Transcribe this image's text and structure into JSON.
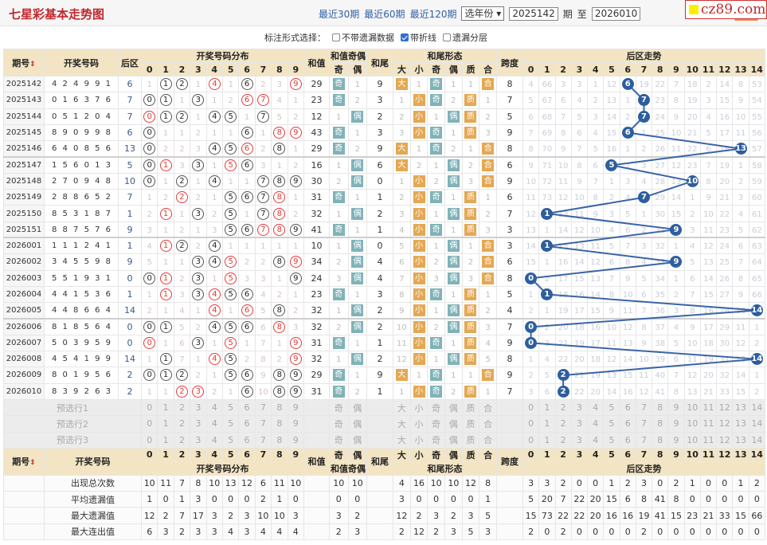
{
  "header": {
    "title": "七星彩基本走势图",
    "links": [
      "最近30期",
      "最近60期",
      "最近120期"
    ],
    "year_select": "选年份",
    "from_issue": "2025142",
    "issue_unit": "期",
    "to_label": "至",
    "to_issue": "2026010",
    "watermark": "cz89.com"
  },
  "options": {
    "label": "标注形式选择：",
    "items": [
      {
        "label": "不带遗漏数据",
        "checked": false
      },
      {
        "label": "带折线",
        "checked": true
      },
      {
        "label": "遗漏分层",
        "checked": false
      }
    ]
  },
  "columns": {
    "issue": "期号",
    "sort": "⇕",
    "nums": "开奖号码",
    "back": "后区",
    "dist": "开奖号码分布",
    "digits": [
      "0",
      "1",
      "2",
      "3",
      "4",
      "5",
      "6",
      "7",
      "8",
      "9"
    ],
    "sum": "和值",
    "sum_parity": "和值奇偶",
    "parity": [
      "奇",
      "偶"
    ],
    "tail": "和尾",
    "tail_form": "和尾形态",
    "forms": [
      "大",
      "小",
      "奇",
      "偶",
      "质",
      "合"
    ],
    "span": "跨度",
    "back_trend": "后区走势",
    "back_digits": [
      "0",
      "1",
      "2",
      "3",
      "4",
      "5",
      "6",
      "7",
      "8",
      "9",
      "10",
      "11",
      "12",
      "13",
      "14"
    ]
  },
  "colors": {
    "hit_back": "#2d5e9e",
    "line": "#3a64a8",
    "teal": "#80b3b8",
    "orange": "#e4a853"
  },
  "rows": [
    {
      "issue": "2025142",
      "nums": [
        4,
        2,
        4,
        9,
        9,
        1
      ],
      "back": 6,
      "miss": [
        1,
        null,
        null,
        1,
        null,
        1,
        null,
        2,
        3,
        null
      ],
      "sum": 29,
      "sp": "奇",
      "spm": 1,
      "tail": 9,
      "bs": "大",
      "bsm": 1,
      "oe": "奇",
      "oem": 1,
      "pc": "合",
      "pcm": 1,
      "span": 8,
      "bmiss": [
        4,
        66,
        3,
        3,
        1,
        12,
        null,
        19,
        22,
        7,
        18,
        2,
        14,
        8,
        53
      ]
    },
    {
      "issue": "2025143",
      "nums": [
        0,
        1,
        6,
        3,
        7,
        6
      ],
      "back": 7,
      "miss": [
        null,
        null,
        1,
        null,
        1,
        2,
        null,
        null,
        4,
        1
      ],
      "sum": 23,
      "sp": "奇",
      "spm": 2,
      "tail": 3,
      "bs": "小",
      "bsm": 1,
      "oe": "奇",
      "oem": 2,
      "pc": "质",
      "pcm": 1,
      "span": 7,
      "bmiss": [
        5,
        67,
        6,
        4,
        2,
        13,
        1,
        null,
        23,
        8,
        19,
        3,
        15,
        9,
        54
      ]
    },
    {
      "issue": "2025144",
      "nums": [
        0,
        5,
        1,
        2,
        0,
        4
      ],
      "back": 7,
      "miss": [
        null,
        null,
        null,
        1,
        null,
        null,
        1,
        null,
        5,
        2
      ],
      "sum": 12,
      "sp": "偶",
      "spm": 1,
      "tail": 2,
      "bs": "小",
      "bsm": 2,
      "oe": "偶",
      "oem": 1,
      "pc": "质",
      "pcm": 2,
      "span": 5,
      "bmiss": [
        6,
        68,
        7,
        5,
        3,
        14,
        2,
        null,
        24,
        9,
        20,
        4,
        16,
        10,
        55
      ]
    },
    {
      "issue": "2025145",
      "nums": [
        8,
        9,
        0,
        9,
        9,
        8
      ],
      "back": 6,
      "miss": [
        null,
        1,
        1,
        2,
        1,
        1,
        null,
        1,
        null,
        null
      ],
      "sum": 43,
      "sp": "奇",
      "spm": 1,
      "tail": 3,
      "bs": "小",
      "bsm": 3,
      "oe": "奇",
      "oem": 1,
      "pc": "质",
      "pcm": 3,
      "span": 9,
      "bmiss": [
        7,
        69,
        8,
        6,
        4,
        15,
        null,
        1,
        25,
        10,
        21,
        5,
        17,
        11,
        56
      ]
    },
    {
      "issue": "2025146",
      "nums": [
        6,
        4,
        0,
        8,
        5,
        6
      ],
      "back": 13,
      "miss": [
        null,
        2,
        2,
        3,
        null,
        null,
        null,
        2,
        null,
        1
      ],
      "sum": 29,
      "sp": "奇",
      "spm": 2,
      "tail": 9,
      "bs": "大",
      "bsm": 1,
      "oe": "奇",
      "oem": 2,
      "pc": "合",
      "pcm": 1,
      "span": 8,
      "bmiss": [
        8,
        70,
        9,
        7,
        5,
        16,
        1,
        2,
        26,
        11,
        22,
        6,
        18,
        null,
        57
      ]
    },
    {
      "issue": "2025147",
      "nums": [
        1,
        5,
        6,
        0,
        1,
        3
      ],
      "back": 5,
      "miss": [
        null,
        null,
        3,
        null,
        1,
        null,
        null,
        3,
        1,
        2
      ],
      "sum": 16,
      "sp": "偶",
      "spm": 1,
      "tail": 6,
      "bs": "大",
      "bsm": 2,
      "oe": "偶",
      "oem": 1,
      "pc": "合",
      "pcm": 2,
      "span": 6,
      "bmiss": [
        9,
        71,
        10,
        8,
        6,
        null,
        2,
        3,
        27,
        12,
        23,
        7,
        19,
        1,
        58
      ]
    },
    {
      "issue": "2025148",
      "nums": [
        2,
        7,
        0,
        9,
        4,
        8
      ],
      "back": 10,
      "miss": [
        null,
        1,
        null,
        1,
        null,
        1,
        1,
        null,
        null,
        null
      ],
      "sum": 30,
      "sp": "偶",
      "spm": 2,
      "tail": 0,
      "bs": "小",
      "bsm": 1,
      "oe": "偶",
      "oem": 2,
      "pc": "合",
      "pcm": 3,
      "span": 9,
      "bmiss": [
        10,
        72,
        11,
        9,
        7,
        1,
        3,
        4,
        28,
        13,
        null,
        8,
        20,
        2,
        59
      ]
    },
    {
      "issue": "2025149",
      "nums": [
        2,
        8,
        8,
        6,
        5,
        2
      ],
      "back": 7,
      "miss": [
        1,
        2,
        null,
        2,
        1,
        null,
        null,
        null,
        null,
        1
      ],
      "sum": 31,
      "sp": "奇",
      "spm": 1,
      "tail": 1,
      "bs": "小",
      "bsm": 2,
      "oe": "奇",
      "oem": 1,
      "pc": "质",
      "pcm": 1,
      "span": 6,
      "bmiss": [
        11,
        73,
        12,
        10,
        8,
        2,
        4,
        null,
        29,
        14,
        1,
        9,
        21,
        3,
        60
      ]
    },
    {
      "issue": "2025150",
      "nums": [
        8,
        5,
        3,
        1,
        8,
        7
      ],
      "back": 1,
      "miss": [
        2,
        null,
        1,
        null,
        2,
        null,
        1,
        null,
        null,
        2
      ],
      "sum": 32,
      "sp": "偶",
      "spm": 1,
      "tail": 2,
      "bs": "小",
      "bsm": 3,
      "oe": "偶",
      "oem": 1,
      "pc": "质",
      "pcm": 2,
      "span": 7,
      "bmiss": [
        12,
        null,
        13,
        11,
        9,
        3,
        5,
        1,
        30,
        15,
        2,
        10,
        22,
        4,
        61
      ]
    },
    {
      "issue": "2025151",
      "nums": [
        8,
        8,
        7,
        5,
        7,
        6
      ],
      "back": 9,
      "miss": [
        3,
        1,
        2,
        1,
        3,
        null,
        null,
        null,
        null,
        null
      ],
      "sum": 41,
      "sp": "奇",
      "spm": 1,
      "tail": 1,
      "bs": "小",
      "bsm": 4,
      "oe": "奇",
      "oem": 1,
      "pc": "质",
      "pcm": 3,
      "span": 3,
      "bmiss": [
        13,
        1,
        14,
        12,
        10,
        4,
        6,
        2,
        31,
        null,
        3,
        11,
        23,
        5,
        62
      ]
    },
    {
      "issue": "2026001",
      "nums": [
        1,
        1,
        1,
        2,
        4,
        1
      ],
      "back": 1,
      "miss": [
        4,
        null,
        null,
        2,
        null,
        1,
        1,
        1,
        1,
        1
      ],
      "sum": 10,
      "sp": "偶",
      "spm": 1,
      "tail": 0,
      "bs": "小",
      "bsm": 5,
      "oe": "偶",
      "oem": 1,
      "pc": "合",
      "pcm": 1,
      "span": 3,
      "bmiss": [
        14,
        null,
        15,
        13,
        11,
        5,
        7,
        3,
        32,
        1,
        4,
        12,
        24,
        6,
        63
      ]
    },
    {
      "issue": "2026002",
      "nums": [
        3,
        4,
        5,
        5,
        9,
        8
      ],
      "back": 9,
      "miss": [
        5,
        1,
        1,
        null,
        null,
        null,
        2,
        2,
        null,
        null
      ],
      "sum": 34,
      "sp": "偶",
      "spm": 2,
      "tail": 4,
      "bs": "小",
      "bsm": 6,
      "oe": "偶",
      "oem": 2,
      "pc": "合",
      "pcm": 2,
      "span": 6,
      "bmiss": [
        15,
        1,
        16,
        14,
        12,
        6,
        8,
        4,
        33,
        null,
        5,
        13,
        25,
        7,
        64
      ]
    },
    {
      "issue": "2026003",
      "nums": [
        5,
        5,
        1,
        9,
        3,
        1
      ],
      "back": 0,
      "miss": [
        null,
        null,
        2,
        null,
        1,
        null,
        3,
        3,
        1,
        null
      ],
      "sum": 24,
      "sp": "偶",
      "spm": 3,
      "tail": 4,
      "bs": "小",
      "bsm": 7,
      "oe": "偶",
      "oem": 3,
      "pc": "合",
      "pcm": 3,
      "span": 8,
      "bmiss": [
        null,
        2,
        17,
        15,
        13,
        7,
        9,
        5,
        34,
        1,
        6,
        14,
        26,
        8,
        65
      ]
    },
    {
      "issue": "2026004",
      "nums": [
        4,
        4,
        1,
        5,
        3,
        6
      ],
      "back": 1,
      "miss": [
        1,
        null,
        3,
        null,
        null,
        null,
        null,
        4,
        2,
        1
      ],
      "sum": 23,
      "sp": "奇",
      "spm": 1,
      "tail": 3,
      "bs": "小",
      "bsm": 8,
      "oe": "奇",
      "oem": 1,
      "pc": "质",
      "pcm": 1,
      "span": 5,
      "bmiss": [
        1,
        null,
        18,
        16,
        14,
        8,
        10,
        6,
        35,
        2,
        7,
        15,
        27,
        9,
        66
      ]
    },
    {
      "issue": "2026005",
      "nums": [
        4,
        4,
        8,
        6,
        6,
        4
      ],
      "back": 14,
      "miss": [
        2,
        1,
        4,
        1,
        null,
        1,
        null,
        5,
        null,
        2
      ],
      "sum": 32,
      "sp": "偶",
      "spm": 1,
      "tail": 2,
      "bs": "小",
      "bsm": 9,
      "oe": "偶",
      "oem": 1,
      "pc": "质",
      "pcm": 2,
      "span": 4,
      "bmiss": [
        2,
        1,
        19,
        17,
        15,
        9,
        11,
        7,
        36,
        3,
        8,
        16,
        28,
        10,
        null
      ]
    },
    {
      "issue": "2026006",
      "nums": [
        8,
        1,
        8,
        5,
        6,
        4
      ],
      "back": 0,
      "miss": [
        null,
        null,
        5,
        2,
        null,
        null,
        null,
        6,
        null,
        3
      ],
      "sum": 32,
      "sp": "偶",
      "spm": 2,
      "tail": 2,
      "bs": "小",
      "bsm": 10,
      "oe": "偶",
      "oem": 2,
      "pc": "质",
      "pcm": 3,
      "span": 7,
      "bmiss": [
        null,
        2,
        20,
        18,
        16,
        10,
        12,
        8,
        37,
        4,
        9,
        17,
        29,
        11,
        1
      ]
    },
    {
      "issue": "2026007",
      "nums": [
        5,
        0,
        3,
        9,
        5,
        9
      ],
      "back": 0,
      "miss": [
        null,
        1,
        6,
        null,
        1,
        null,
        1,
        7,
        1,
        null
      ],
      "sum": 31,
      "sp": "奇",
      "spm": 1,
      "tail": 1,
      "bs": "小",
      "bsm": 11,
      "oe": "奇",
      "oem": 1,
      "pc": "质",
      "pcm": 4,
      "span": 9,
      "bmiss": [
        null,
        3,
        21,
        19,
        17,
        11,
        13,
        9,
        38,
        5,
        10,
        18,
        30,
        12,
        2
      ]
    },
    {
      "issue": "2026008",
      "nums": [
        4,
        5,
        4,
        1,
        9,
        9
      ],
      "back": 14,
      "miss": [
        1,
        null,
        7,
        1,
        null,
        null,
        2,
        8,
        2,
        null
      ],
      "sum": 32,
      "sp": "偶",
      "spm": 1,
      "tail": 2,
      "bs": "小",
      "bsm": 12,
      "oe": "偶",
      "oem": 1,
      "pc": "质",
      "pcm": 5,
      "span": 8,
      "bmiss": [
        1,
        4,
        22,
        20,
        18,
        12,
        14,
        10,
        39,
        6,
        11,
        19,
        31,
        13,
        null
      ]
    },
    {
      "issue": "2026009",
      "nums": [
        8,
        0,
        1,
        9,
        5,
        6
      ],
      "back": 2,
      "miss": [
        null,
        null,
        null,
        2,
        1,
        null,
        null,
        9,
        null,
        null
      ],
      "sum": 29,
      "sp": "奇",
      "spm": 1,
      "tail": 9,
      "bs": "大",
      "bsm": 1,
      "oe": "奇",
      "oem": 1,
      "pc": "合",
      "pcm": 1,
      "span": 9,
      "bmiss": [
        2,
        5,
        null,
        21,
        19,
        13,
        15,
        11,
        40,
        7,
        12,
        20,
        32,
        14,
        1
      ]
    },
    {
      "issue": "2026010",
      "nums": [
        8,
        3,
        9,
        2,
        6,
        3
      ],
      "back": 2,
      "miss": [
        1,
        1,
        null,
        null,
        2,
        1,
        null,
        10,
        null,
        null
      ],
      "sum": 31,
      "sp": "奇",
      "spm": 2,
      "tail": 1,
      "bs": "小",
      "bsm": 1,
      "oe": "奇",
      "oem": 2,
      "pc": "质",
      "pcm": 1,
      "span": 7,
      "bmiss": [
        3,
        6,
        null,
        22,
        20,
        14,
        16,
        12,
        41,
        8,
        13,
        21,
        33,
        15,
        2
      ]
    }
  ],
  "preselect": [
    "预选行1",
    "预选行2",
    "预选行3"
  ],
  "stats": [
    {
      "label": "出现总次数",
      "dist": [
        10,
        11,
        7,
        8,
        10,
        13,
        12,
        6,
        11,
        10
      ],
      "parity": [
        10,
        10
      ],
      "forms": [
        4,
        16,
        10,
        10,
        12,
        8
      ],
      "back": [
        3,
        3,
        2,
        0,
        0,
        1,
        2,
        3,
        0,
        2,
        1,
        0,
        0,
        1,
        2
      ]
    },
    {
      "label": "平均遗漏值",
      "dist": [
        1,
        0,
        1,
        3,
        0,
        0,
        0,
        2,
        1,
        0
      ],
      "parity": [
        0,
        0
      ],
      "forms": [
        3,
        0,
        0,
        0,
        0,
        1
      ],
      "back": [
        5,
        20,
        7,
        22,
        20,
        15,
        6,
        8,
        41,
        8,
        0,
        0,
        0,
        0,
        0
      ]
    },
    {
      "label": "最大遗漏值",
      "dist": [
        12,
        2,
        7,
        17,
        3,
        2,
        3,
        10,
        10,
        3
      ],
      "parity": [
        3,
        2
      ],
      "forms": [
        12,
        2,
        3,
        2,
        3,
        5
      ],
      "back": [
        15,
        73,
        22,
        22,
        20,
        16,
        16,
        19,
        41,
        15,
        23,
        21,
        33,
        15,
        66
      ]
    },
    {
      "label": "最大连出值",
      "dist": [
        6,
        3,
        2,
        3,
        3,
        4,
        3,
        4,
        4,
        4
      ],
      "parity": [
        2,
        3
      ],
      "forms": [
        2,
        12,
        2,
        3,
        5,
        3
      ],
      "back": [
        2,
        0,
        2,
        0,
        0,
        0,
        0,
        2,
        0,
        0,
        0,
        0,
        0,
        0,
        0
      ]
    }
  ]
}
